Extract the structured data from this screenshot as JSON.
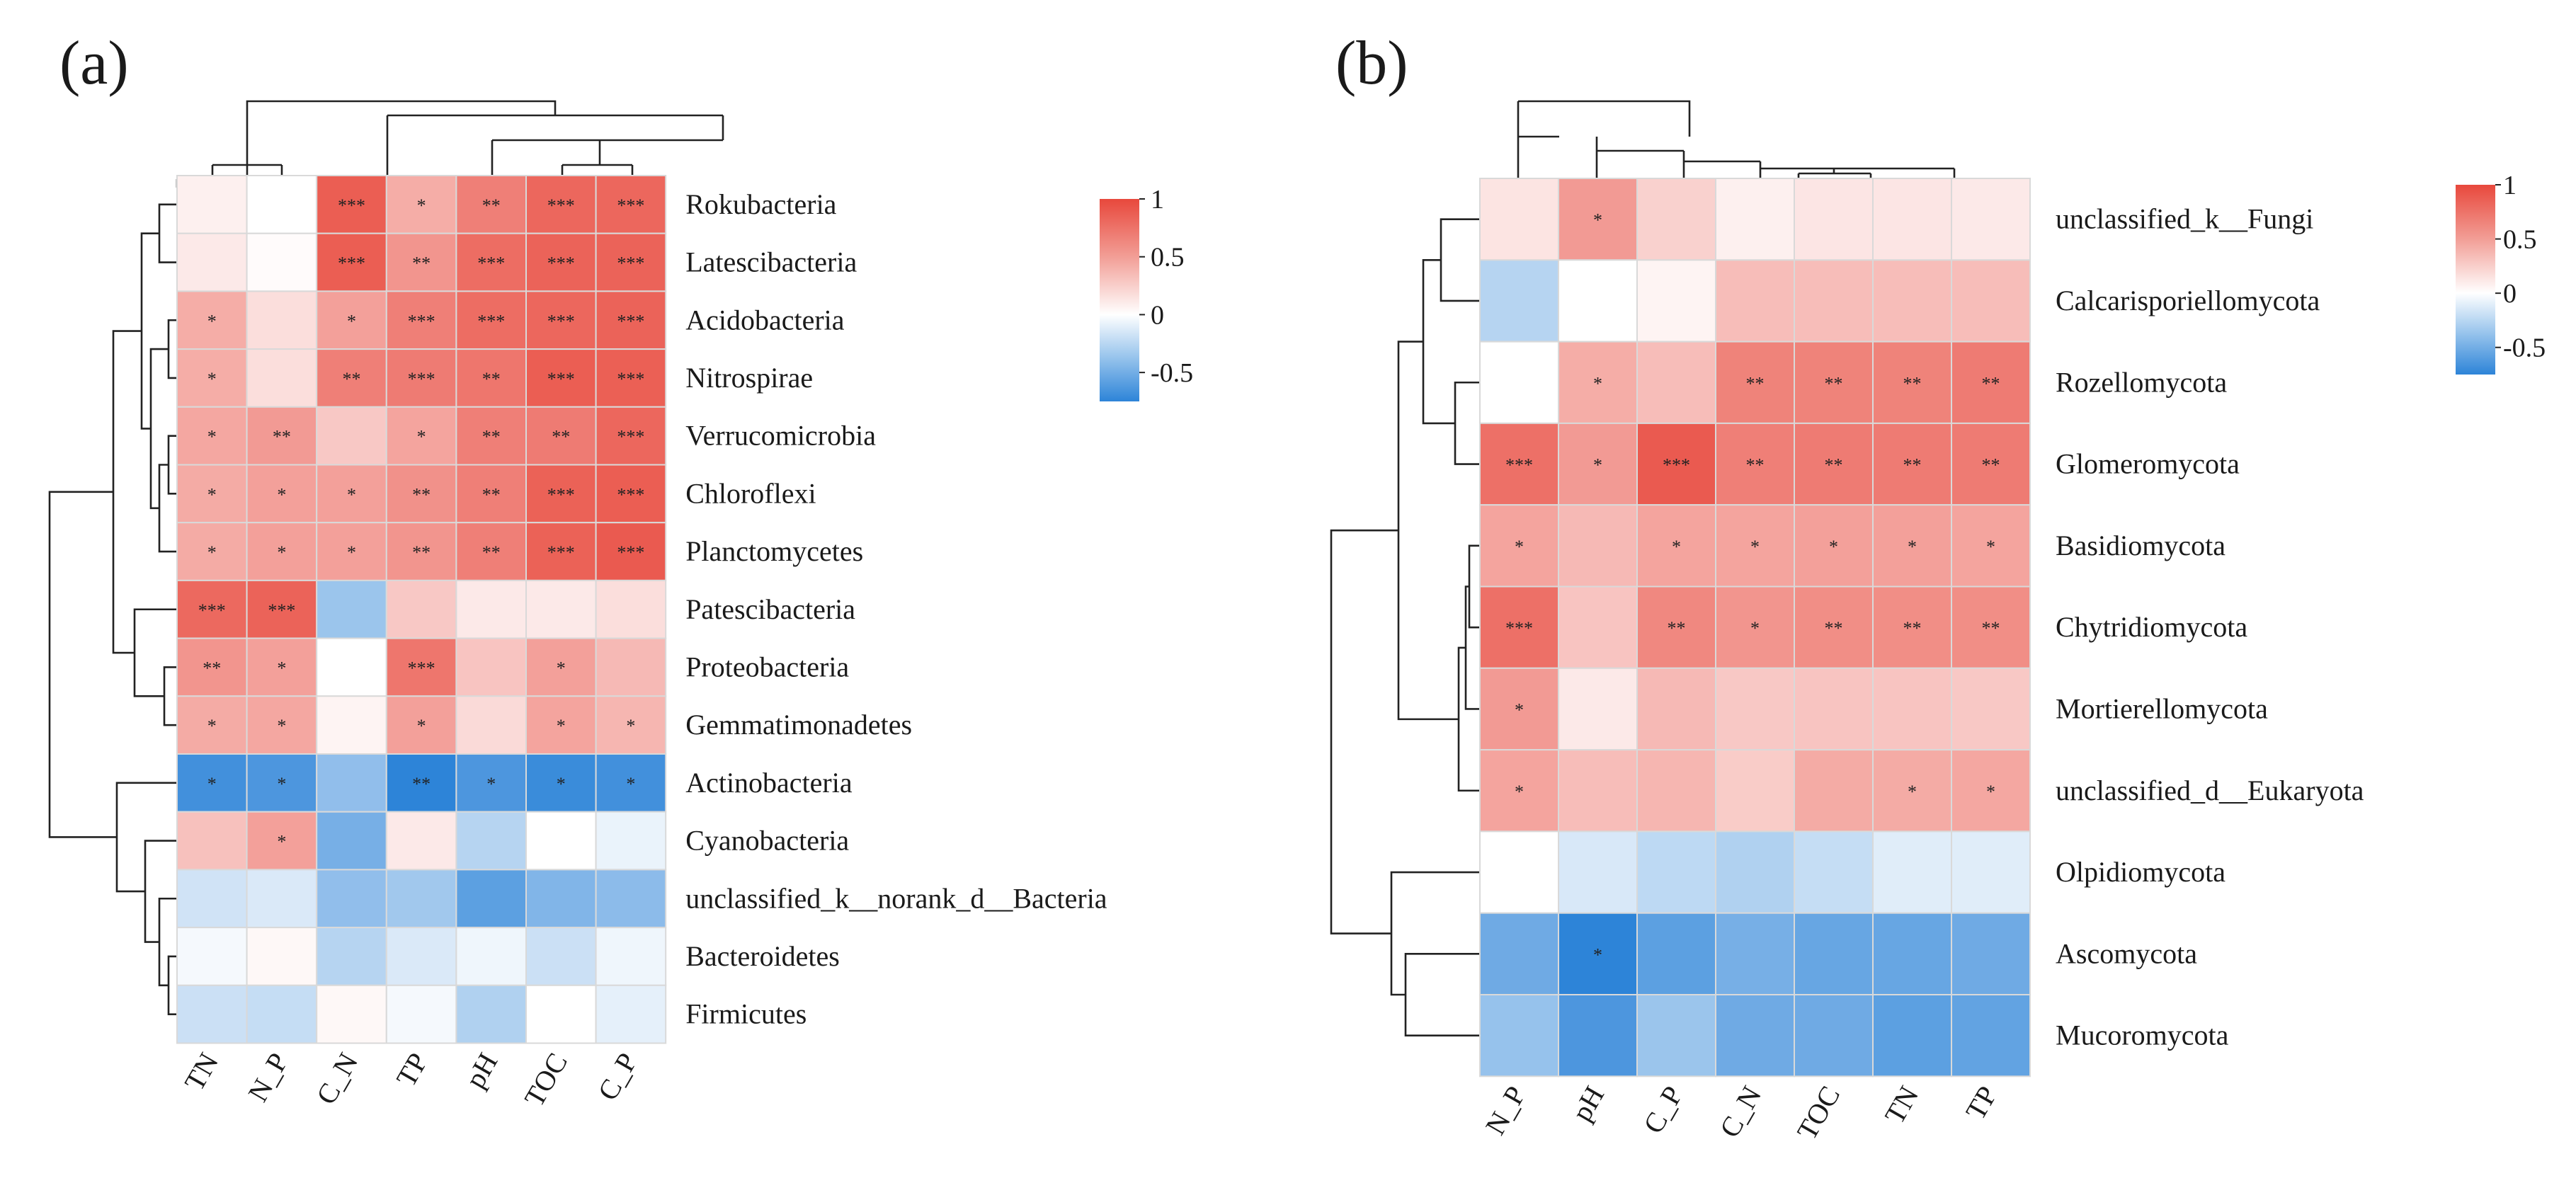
{
  "chart_data": [
    {
      "type": "heatmap",
      "title": "",
      "panel_label": "(a)",
      "columns": [
        "TN",
        "N_P",
        "C_N",
        "TP",
        "pH",
        "TOC",
        "C_P"
      ],
      "rows": [
        "Rokubacteria",
        "Latescibacteria",
        "Acidobacteria",
        "Nitrospirae",
        "Verrucomicrobia",
        "Chloroflexi",
        "Planctomycetes",
        "Patescibacteria",
        "Proteobacteria",
        "Gemmatimonadetes",
        "Actinobacteria",
        "Cyanobacteria",
        "unclassified_k__norank_d__Bacteria",
        "Bacteroidetes",
        "Firmicutes"
      ],
      "values": [
        [
          0.08,
          0.0,
          0.88,
          0.45,
          0.7,
          0.83,
          0.83
        ],
        [
          0.12,
          0.02,
          0.88,
          0.58,
          0.8,
          0.85,
          0.85
        ],
        [
          0.45,
          0.18,
          0.52,
          0.7,
          0.8,
          0.83,
          0.85
        ],
        [
          0.45,
          0.18,
          0.7,
          0.72,
          0.75,
          0.88,
          0.87
        ],
        [
          0.48,
          0.55,
          0.3,
          0.5,
          0.7,
          0.72,
          0.83
        ],
        [
          0.46,
          0.52,
          0.52,
          0.6,
          0.7,
          0.86,
          0.88
        ],
        [
          0.46,
          0.52,
          0.52,
          0.58,
          0.7,
          0.86,
          0.9
        ],
        [
          0.82,
          0.85,
          -0.38,
          0.3,
          0.12,
          0.12,
          0.18
        ],
        [
          0.58,
          0.52,
          0.0,
          0.75,
          0.32,
          0.52,
          0.38
        ],
        [
          0.46,
          0.48,
          0.06,
          0.52,
          0.2,
          0.5,
          0.4
        ],
        [
          -0.72,
          -0.68,
          -0.42,
          -0.8,
          -0.68,
          -0.75,
          -0.72
        ],
        [
          0.34,
          0.52,
          -0.52,
          0.12,
          -0.28,
          0.0,
          -0.08
        ],
        [
          -0.18,
          -0.14,
          -0.42,
          -0.36,
          -0.62,
          -0.48,
          -0.44
        ],
        [
          -0.04,
          0.04,
          -0.28,
          -0.14,
          -0.06,
          -0.2,
          -0.06
        ],
        [
          -0.2,
          -0.22,
          0.04,
          -0.04,
          -0.3,
          0.0,
          -0.1
        ]
      ],
      "significance": [
        [
          "",
          "",
          "***",
          "*",
          "**",
          "***",
          "***"
        ],
        [
          "",
          "",
          "***",
          "**",
          "***",
          "***",
          "***"
        ],
        [
          "*",
          "",
          "*",
          "***",
          "***",
          "***",
          "***"
        ],
        [
          "*",
          "",
          "**",
          "***",
          "**",
          "***",
          "***"
        ],
        [
          "*",
          "**",
          "",
          "*",
          "**",
          "**",
          "***"
        ],
        [
          "*",
          "*",
          "*",
          "**",
          "**",
          "***",
          "***"
        ],
        [
          "*",
          "*",
          "*",
          "**",
          "**",
          "***",
          "***"
        ],
        [
          "***",
          "***",
          "",
          "",
          "",
          "",
          ""
        ],
        [
          "**",
          "*",
          "",
          "***",
          "",
          "*",
          ""
        ],
        [
          "*",
          "*",
          "",
          "*",
          "",
          "*",
          "*"
        ],
        [
          "*",
          "*",
          "",
          "**",
          "*",
          "*",
          "*"
        ],
        [
          "",
          "*",
          "",
          "",
          "",
          "",
          ""
        ],
        [
          "",
          "",
          "",
          "",
          "",
          "",
          ""
        ],
        [
          "",
          "",
          "",
          "",
          "",
          "",
          ""
        ],
        [
          "",
          "",
          "",
          "",
          "",
          "",
          ""
        ]
      ],
      "legend": {
        "ticks": [
          "1",
          "0.5",
          "0",
          "-0.5"
        ],
        "range": [
          -0.75,
          1
        ],
        "position": "top-right"
      }
    },
    {
      "type": "heatmap",
      "title": "",
      "panel_label": "(b)",
      "columns": [
        "N_P",
        "pH",
        "C_P",
        "C_N",
        "TOC",
        "TN",
        "TP"
      ],
      "rows": [
        "unclassified_k__Fungi",
        "Calcarisporiellomycota",
        "Rozellomycota",
        "Glomeromycota",
        "Basidiomycota",
        "Chytridiomycota",
        "Mortierellomycota",
        "unclassified_d__Eukaryota",
        "Olpidiomycota",
        "Ascomycota",
        "Mucoromycota"
      ],
      "values": [
        [
          0.15,
          0.55,
          0.25,
          0.08,
          0.14,
          0.14,
          0.12
        ],
        [
          -0.28,
          0.0,
          0.06,
          0.36,
          0.36,
          0.36,
          0.36
        ],
        [
          0.0,
          0.45,
          0.36,
          0.68,
          0.68,
          0.68,
          0.72
        ],
        [
          0.78,
          0.55,
          0.9,
          0.7,
          0.72,
          0.72,
          0.72
        ],
        [
          0.5,
          0.38,
          0.5,
          0.5,
          0.52,
          0.52,
          0.5
        ],
        [
          0.78,
          0.32,
          0.65,
          0.58,
          0.62,
          0.62,
          0.62
        ],
        [
          0.55,
          0.12,
          0.38,
          0.3,
          0.32,
          0.32,
          0.3
        ],
        [
          0.5,
          0.36,
          0.4,
          0.28,
          0.46,
          0.46,
          0.48
        ],
        [
          0.0,
          -0.15,
          -0.25,
          -0.3,
          -0.22,
          -0.12,
          -0.12
        ],
        [
          -0.55,
          -0.85,
          -0.62,
          -0.52,
          -0.58,
          -0.58,
          -0.55
        ],
        [
          -0.4,
          -0.68,
          -0.38,
          -0.55,
          -0.55,
          -0.62,
          -0.6
        ]
      ],
      "significance": [
        [
          "",
          "*",
          "",
          "",
          "",
          "",
          ""
        ],
        [
          "",
          "",
          "",
          "",
          "",
          "",
          ""
        ],
        [
          "",
          "*",
          "",
          "**",
          "**",
          "**",
          "**"
        ],
        [
          "***",
          "*",
          "***",
          "**",
          "**",
          "**",
          "**"
        ],
        [
          "*",
          "",
          "*",
          "*",
          "*",
          "*",
          "*"
        ],
        [
          "***",
          "",
          "**",
          "*",
          "**",
          "**",
          "**"
        ],
        [
          "*",
          "",
          "",
          "",
          "",
          "",
          ""
        ],
        [
          "*",
          "",
          "",
          "",
          "",
          "*",
          "*"
        ],
        [
          "",
          "",
          "",
          "",
          "",
          "",
          ""
        ],
        [
          "",
          "*",
          "",
          "",
          "",
          "",
          ""
        ],
        [
          "",
          "",
          "",
          "",
          "",
          "",
          ""
        ]
      ],
      "legend": {
        "ticks": [
          "1",
          "0.5",
          "0",
          "-0.5"
        ],
        "range": [
          -0.75,
          1
        ],
        "position": "top-right"
      }
    }
  ]
}
